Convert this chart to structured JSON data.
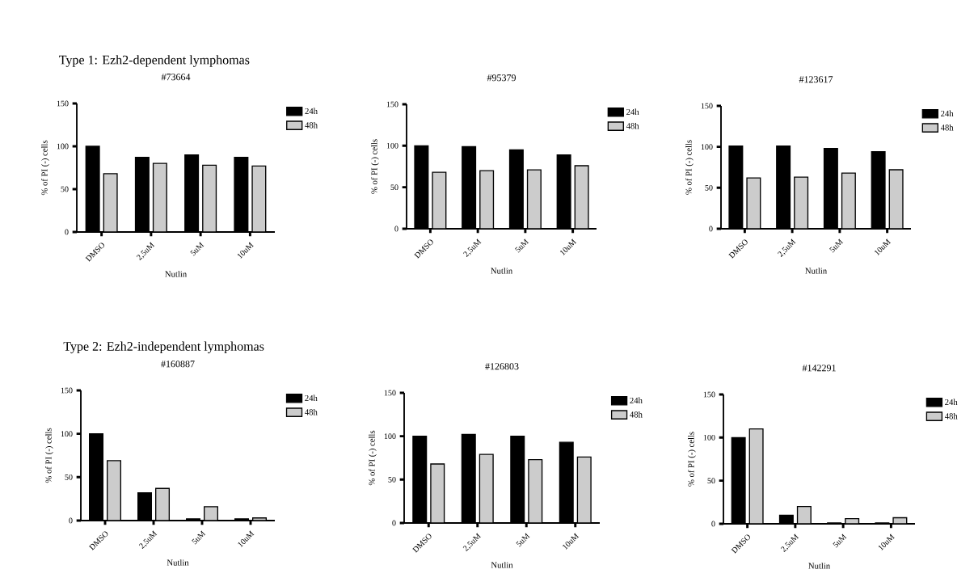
{
  "chart_data": [
    {
      "type": "bar",
      "title": "#73664",
      "xlabel": "Nutlin",
      "ylabel": "% of PI (-) cells",
      "annotations": [
        "Type 1: Ezh2-dependent lymphomas"
      ],
      "categories": [
        "DMSO",
        "2,5uM",
        "5uM",
        "10uM"
      ],
      "ylim": [
        0,
        150
      ],
      "yticks": [
        0,
        50,
        100,
        150
      ],
      "legend": "top right",
      "series": [
        {
          "name": "24h",
          "color": "#000000",
          "values": [
            100,
            87,
            90,
            87
          ]
        },
        {
          "name": "48h",
          "color": "#cccccc",
          "values": [
            68,
            80,
            78,
            77
          ]
        }
      ]
    },
    {
      "type": "bar",
      "title": "#95379",
      "xlabel": "Nutlin",
      "ylabel": "% of PI (-) cells",
      "categories": [
        "DMSO",
        "2,5uM",
        "5uM",
        "10uM"
      ],
      "ylim": [
        0,
        150
      ],
      "yticks": [
        0,
        50,
        100,
        150
      ],
      "legend": "top right",
      "series": [
        {
          "name": "24h",
          "color": "#000000",
          "values": [
            100,
            99,
            95,
            89
          ]
        },
        {
          "name": "48h",
          "color": "#cccccc",
          "values": [
            68,
            70,
            71,
            76
          ]
        }
      ]
    },
    {
      "type": "bar",
      "title": "#123617",
      "xlabel": "Nutlin",
      "ylabel": "% of PI (-) cells",
      "categories": [
        "DMSO",
        "2,5uM",
        "5uM",
        "10uM"
      ],
      "ylim": [
        0,
        150
      ],
      "yticks": [
        0,
        50,
        100,
        150
      ],
      "legend": "top right",
      "series": [
        {
          "name": "24h",
          "color": "#000000",
          "values": [
            101,
            101,
            98,
            94
          ]
        },
        {
          "name": "48h",
          "color": "#cccccc",
          "values": [
            62,
            63,
            68,
            72
          ]
        }
      ]
    },
    {
      "type": "bar",
      "title": "#160887",
      "xlabel": "Nutlin",
      "ylabel": "% of PI (-) cells",
      "annotations": [
        "Type 2: Ezh2-independent lymphomas"
      ],
      "categories": [
        "DMSO",
        "2,5uM",
        "5uM",
        "10uM"
      ],
      "ylim": [
        0,
        150
      ],
      "yticks": [
        0,
        50,
        100,
        150
      ],
      "legend": "top right",
      "series": [
        {
          "name": "24h",
          "color": "#000000",
          "values": [
            100,
            32,
            2,
            2
          ]
        },
        {
          "name": "48h",
          "color": "#cccccc",
          "values": [
            69,
            37,
            16,
            3
          ]
        }
      ]
    },
    {
      "type": "bar",
      "title": "#126803",
      "xlabel": "Nutlin",
      "ylabel": "% of PI (-) cells",
      "categories": [
        "DMSO",
        "2,5uM",
        "5uM",
        "10uM"
      ],
      "ylim": [
        0,
        150
      ],
      "yticks": [
        0,
        50,
        100,
        150
      ],
      "legend": "top right",
      "series": [
        {
          "name": "24h",
          "color": "#000000",
          "values": [
            100,
            102,
            100,
            93
          ]
        },
        {
          "name": "48h",
          "color": "#cccccc",
          "values": [
            68,
            79,
            73,
            76
          ]
        }
      ]
    },
    {
      "type": "bar",
      "title": "#142291",
      "xlabel": "Nutlin",
      "ylabel": "% of PI (-) cells",
      "categories": [
        "DMSO",
        "2,5uM",
        "5uM",
        "10uM"
      ],
      "ylim": [
        0,
        150
      ],
      "yticks": [
        0,
        50,
        100,
        150
      ],
      "legend": "top right",
      "series": [
        {
          "name": "24h",
          "color": "#000000",
          "values": [
            100,
            10,
            1,
            1
          ]
        },
        {
          "name": "48h",
          "color": "#cccccc",
          "values": [
            110,
            20,
            6,
            7
          ]
        }
      ]
    }
  ]
}
